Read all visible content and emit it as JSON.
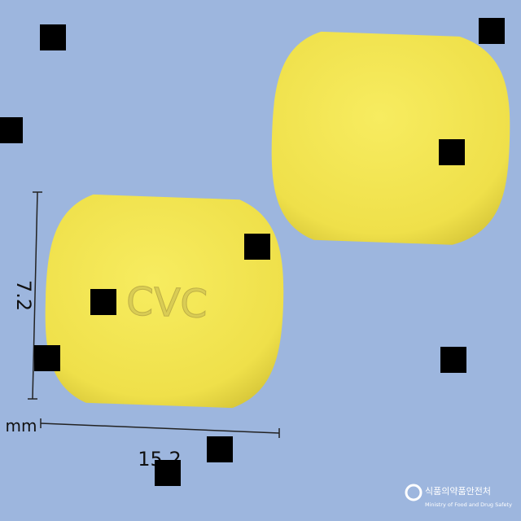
{
  "imprint": "CVC",
  "height_label": "7.2",
  "unit_label": "mm",
  "width_label": "15.2",
  "logo": {
    "korean": "식품의약품안전처",
    "english": "Ministry of Food and Drug Safety"
  }
}
